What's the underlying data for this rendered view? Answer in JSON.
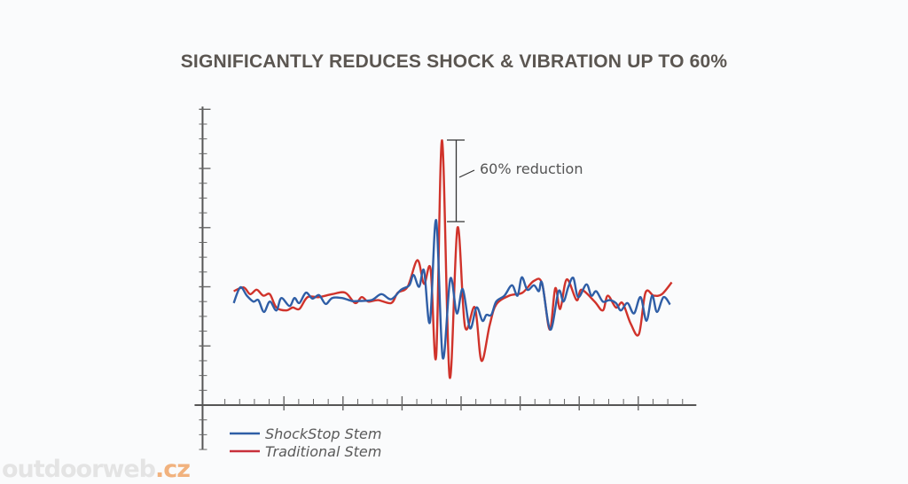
{
  "chart_data": {
    "type": "line",
    "title": "SIGNIFICANTLY REDUCES SHOCK & VIBRATION UP TO 60%",
    "xlabel": "",
    "ylabel": "",
    "xlim": [
      2.5,
      153
    ],
    "ylim": [
      -1.5,
      10
    ],
    "grid": false,
    "legend_position": "bottom-left",
    "annotation": "60% reduction",
    "series": [
      {
        "name": "ShockStop Stem",
        "color": "#2f5ea6",
        "points": [
          [
            12,
            3.45
          ],
          [
            14,
            3.98
          ],
          [
            16,
            3.7
          ],
          [
            18,
            3.5
          ],
          [
            19.5,
            3.55
          ],
          [
            21.2,
            3.15
          ],
          [
            23,
            3.5
          ],
          [
            25,
            3.2
          ],
          [
            26.5,
            3.62
          ],
          [
            29,
            3.35
          ],
          [
            30.5,
            3.62
          ],
          [
            32,
            3.45
          ],
          [
            34,
            3.8
          ],
          [
            36,
            3.6
          ],
          [
            38,
            3.72
          ],
          [
            40,
            3.42
          ],
          [
            42,
            3.62
          ],
          [
            45,
            3.62
          ],
          [
            48,
            3.52
          ],
          [
            50,
            3.52
          ],
          [
            54,
            3.55
          ],
          [
            57,
            3.75
          ],
          [
            60,
            3.58
          ],
          [
            63,
            3.9
          ],
          [
            65.5,
            4.05
          ],
          [
            66.8,
            4.4
          ],
          [
            68.5,
            4.0
          ],
          [
            70,
            4.55
          ],
          [
            71.8,
            2.8
          ],
          [
            73.7,
            6.25
          ],
          [
            75.7,
            1.6
          ],
          [
            78,
            4.27
          ],
          [
            80,
            3.1
          ],
          [
            81.8,
            3.92
          ],
          [
            84,
            2.6
          ],
          [
            86,
            3.3
          ],
          [
            87.8,
            2.85
          ],
          [
            89,
            3.05
          ],
          [
            90.5,
            3.05
          ],
          [
            92,
            3.5
          ],
          [
            94.5,
            3.7
          ],
          [
            96.8,
            4.05
          ],
          [
            98.5,
            3.7
          ],
          [
            99.8,
            4.32
          ],
          [
            101.5,
            3.9
          ],
          [
            103.5,
            4.05
          ],
          [
            105,
            3.85
          ],
          [
            106,
            4.12
          ],
          [
            108.5,
            2.55
          ],
          [
            111,
            3.85
          ],
          [
            112.5,
            3.5
          ],
          [
            114,
            4.0
          ],
          [
            115.5,
            4.3
          ],
          [
            117,
            3.65
          ],
          [
            119.5,
            4.08
          ],
          [
            121,
            3.7
          ],
          [
            122.5,
            3.85
          ],
          [
            124.5,
            3.5
          ],
          [
            126.5,
            3.55
          ],
          [
            128.5,
            3.45
          ],
          [
            130,
            3.2
          ],
          [
            132,
            3.45
          ],
          [
            134,
            3.1
          ],
          [
            136,
            3.65
          ],
          [
            137.8,
            2.85
          ],
          [
            139.5,
            3.7
          ],
          [
            141,
            3.15
          ],
          [
            143,
            3.65
          ],
          [
            145,
            3.4
          ]
        ]
      },
      {
        "name": "Traditional Stem",
        "color": "#d0332b",
        "points": [
          [
            12,
            3.85
          ],
          [
            15,
            3.98
          ],
          [
            17,
            3.75
          ],
          [
            19,
            3.9
          ],
          [
            21,
            3.7
          ],
          [
            23,
            3.75
          ],
          [
            25,
            3.3
          ],
          [
            28,
            3.2
          ],
          [
            30,
            3.3
          ],
          [
            32,
            3.25
          ],
          [
            34.5,
            3.65
          ],
          [
            38,
            3.65
          ],
          [
            42,
            3.75
          ],
          [
            46,
            3.8
          ],
          [
            49,
            3.45
          ],
          [
            51,
            3.65
          ],
          [
            53,
            3.5
          ],
          [
            56,
            3.55
          ],
          [
            60,
            3.45
          ],
          [
            62,
            3.8
          ],
          [
            65,
            4.0
          ],
          [
            68,
            4.9
          ],
          [
            70,
            4.1
          ],
          [
            72,
            4.6
          ],
          [
            73.7,
            1.65
          ],
          [
            75.5,
            8.95
          ],
          [
            77.8,
            0.95
          ],
          [
            80.2,
            6.0
          ],
          [
            82.5,
            2.65
          ],
          [
            85.5,
            3.3
          ],
          [
            87.5,
            1.5
          ],
          [
            90,
            2.7
          ],
          [
            92,
            3.4
          ],
          [
            96,
            3.7
          ],
          [
            100,
            3.8
          ],
          [
            103.5,
            4.2
          ],
          [
            106,
            4.1
          ],
          [
            108.3,
            2.55
          ],
          [
            110,
            3.95
          ],
          [
            111.5,
            3.25
          ],
          [
            113.5,
            4.25
          ],
          [
            116.5,
            3.55
          ],
          [
            118,
            3.9
          ],
          [
            122,
            3.5
          ],
          [
            124.5,
            3.2
          ],
          [
            126,
            3.7
          ],
          [
            128.5,
            3.3
          ],
          [
            130.5,
            3.45
          ],
          [
            133,
            2.75
          ],
          [
            135.5,
            2.4
          ],
          [
            137.5,
            3.8
          ],
          [
            140,
            3.7
          ],
          [
            142.5,
            3.75
          ],
          [
            145.5,
            4.15
          ]
        ]
      }
    ]
  },
  "watermark": {
    "name": "outdoorweb",
    "tld": ".cz"
  }
}
